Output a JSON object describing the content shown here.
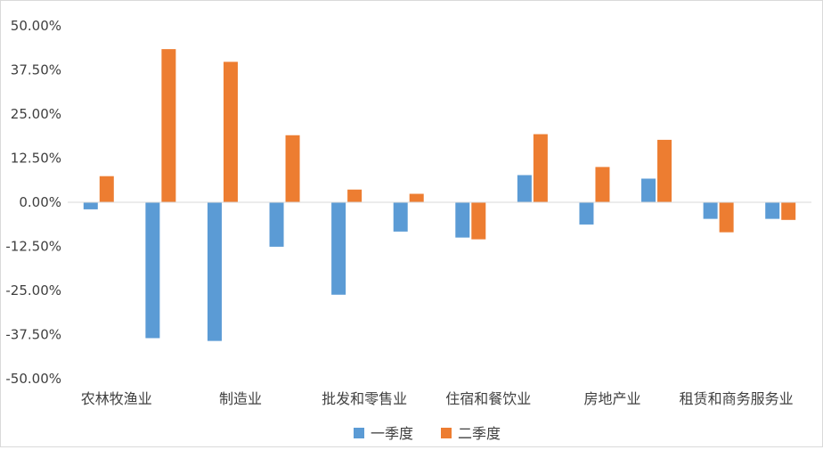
{
  "chart_data": {
    "type": "bar",
    "title": "",
    "xlabel": "",
    "ylabel": "",
    "categories": [
      "农林牧渔业",
      "",
      "制造业",
      "",
      "批发和零售业",
      "",
      "住宿和餐饮业",
      "",
      "房地产业",
      "",
      "租赁和商务服务业",
      ""
    ],
    "series": [
      {
        "name": "一季度",
        "color": "#5B9BD5",
        "values": [
          -0.02,
          -0.385,
          -0.393,
          -0.126,
          -0.262,
          -0.083,
          -0.1,
          0.077,
          -0.063,
          0.067,
          -0.047,
          -0.047
        ]
      },
      {
        "name": "二季度",
        "color": "#ED7D31",
        "values": [
          0.074,
          0.434,
          0.398,
          0.19,
          0.036,
          0.024,
          -0.105,
          0.193,
          0.1,
          0.177,
          -0.085,
          -0.05
        ]
      }
    ],
    "ylim": [
      -0.5,
      0.5
    ],
    "yticks": [
      "50.00%",
      "37.50%",
      "25.00%",
      "12.50%",
      "0.00%",
      "-12.50%",
      "-25.00%",
      "-37.50%",
      "-50.00%"
    ],
    "ytick_values": [
      0.5,
      0.375,
      0.25,
      0.125,
      0,
      -0.125,
      -0.25,
      -0.375,
      -0.5
    ],
    "grid": false,
    "legend_position": "bottom"
  }
}
